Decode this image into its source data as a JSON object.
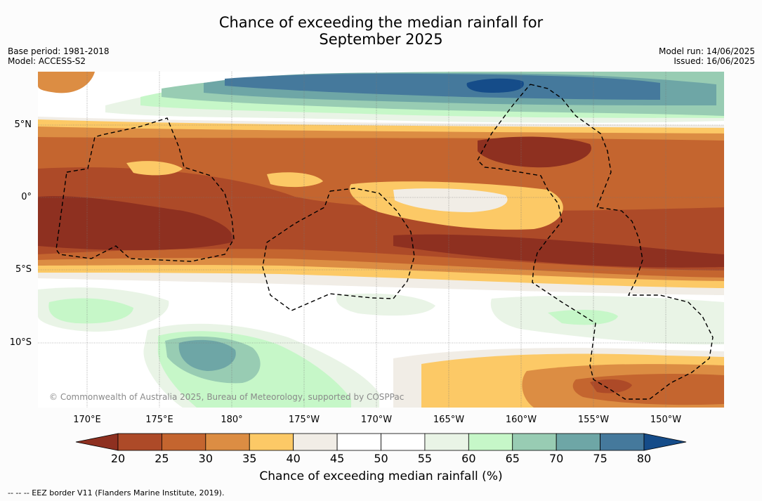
{
  "title_line1": "Chance of exceeding the median rainfall for",
  "title_line2": "September 2025",
  "meta_left": [
    "Base period: 1981-2018",
    "Model: ACCESS-S2"
  ],
  "meta_right": [
    "Model run: 14/06/2025",
    "Issued: 16/06/2025"
  ],
  "lat_labels": [
    "5°N",
    "0°",
    "5°S",
    "10°S"
  ],
  "lon_labels": [
    "170°E",
    "175°E",
    "180°",
    "175°W",
    "170°W",
    "165°W",
    "160°W",
    "155°W",
    "150°W"
  ],
  "copyright": "© Commonwealth of Australia 2025, Bureau of Meteorology, supported by COSPPac",
  "colorbar": {
    "ticks": [
      "20",
      "25",
      "30",
      "35",
      "40",
      "45",
      "50",
      "55",
      "60",
      "65",
      "70",
      "75",
      "80"
    ],
    "label": "Chance of exceeding median rainfall (%)",
    "colors": [
      "#8e3020",
      "#ad4a28",
      "#c4652f",
      "#dc8d43",
      "#fcc966",
      "#f1ede6",
      "#ffffff",
      "#ffffff",
      "#e9f4e6",
      "#c6f7c8",
      "#98ccb3",
      "#6ea6a6",
      "#45799c",
      "#154c89"
    ]
  },
  "footnote": "--  --  -- EEZ border V11 (Flanders Marine Institute, 2019)."
}
